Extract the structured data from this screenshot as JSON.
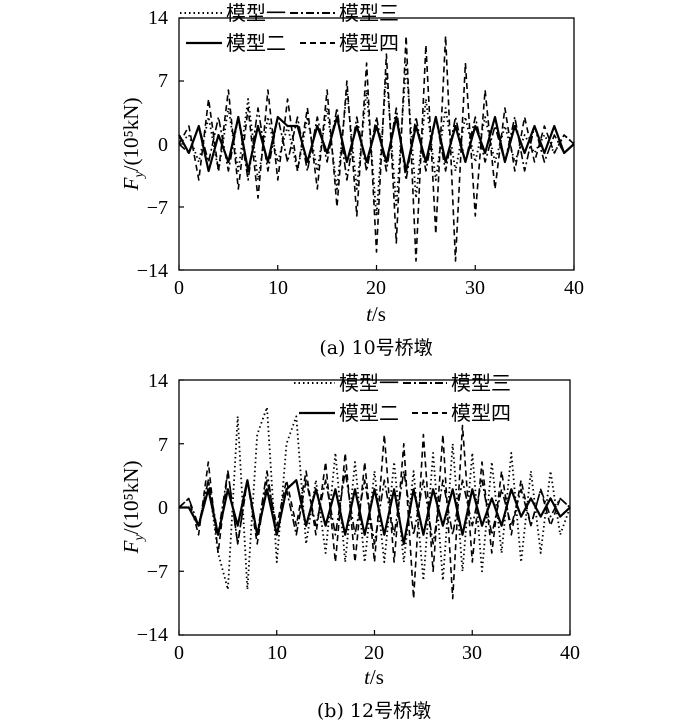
{
  "charts": [
    {
      "id": "a",
      "caption": "(a) 10号桥墩",
      "xlabel_var": "t",
      "xlabel_unit": "/s",
      "ylabel_var": "F",
      "ylabel_sub": "y",
      "ylabel_unit": "/(10⁵kN)",
      "xticks": [
        "0",
        "10",
        "20",
        "30",
        "40"
      ],
      "yticks": [
        "14",
        "7",
        "0",
        "−7",
        "−14"
      ],
      "legend": [
        "模型一",
        "模型三",
        "模型二",
        "模型四"
      ]
    },
    {
      "id": "b",
      "caption": "(b) 12号桥墩",
      "xlabel_var": "t",
      "xlabel_unit": "/s",
      "ylabel_var": "F",
      "ylabel_sub": "y",
      "ylabel_unit": "/(10⁵kN)",
      "xticks": [
        "0",
        "10",
        "20",
        "30",
        "40"
      ],
      "yticks": [
        "14",
        "7",
        "0",
        "−7",
        "−14"
      ],
      "legend": [
        "模型一",
        "模型三",
        "模型二",
        "模型四"
      ]
    }
  ],
  "chart_data": [
    {
      "type": "line",
      "caption": "(a) 10号桥墩",
      "xlabel": "t/s",
      "ylabel": "Fy/(10^5kN)",
      "xlim": [
        0,
        40
      ],
      "ylim": [
        -14,
        14
      ],
      "grid": false,
      "legend_position": "top",
      "series": [
        {
          "name": "模型一",
          "style": "dotted",
          "x": [
            0,
            1,
            2,
            3,
            4,
            5,
            6,
            7,
            8,
            9,
            10,
            11,
            12,
            13,
            14,
            15,
            16,
            17,
            18,
            19,
            20,
            21,
            22,
            23,
            24,
            25,
            26,
            27,
            28,
            29,
            30,
            31,
            32,
            33,
            34,
            35,
            36,
            37,
            38,
            39,
            40
          ],
          "y": [
            0,
            1,
            -2,
            3,
            -3,
            4,
            -3,
            5,
            -4,
            3,
            -2,
            2,
            -3,
            3,
            -3,
            4,
            -5,
            6,
            -5,
            6,
            -8,
            8,
            -7,
            9,
            -6,
            5,
            -4,
            4,
            -3,
            3,
            -2,
            3,
            -2,
            2,
            -2,
            1,
            -1,
            1,
            -1,
            1,
            0
          ]
        },
        {
          "name": "模型三",
          "style": "dashdot",
          "x": [
            0,
            1,
            2,
            3,
            4,
            5,
            6,
            7,
            8,
            9,
            10,
            11,
            12,
            13,
            14,
            15,
            16,
            17,
            18,
            19,
            20,
            21,
            22,
            23,
            24,
            25,
            26,
            27,
            28,
            29,
            30,
            31,
            32,
            33,
            34,
            35,
            36,
            37,
            38,
            39,
            40
          ],
          "y": [
            0,
            -1,
            2,
            -2,
            3,
            -3,
            3,
            -4,
            4,
            -3,
            3,
            -2,
            3,
            -3,
            3,
            -2,
            4,
            -4,
            3,
            -3,
            3,
            -3,
            4,
            -4,
            3,
            -3,
            3,
            -3,
            3,
            -2,
            3,
            -2,
            2,
            -2,
            3,
            -3,
            2,
            -2,
            1,
            -1,
            0
          ]
        },
        {
          "name": "模型二",
          "style": "solid",
          "x": [
            0,
            1,
            2,
            3,
            4,
            5,
            6,
            7,
            8,
            9,
            10,
            11,
            12,
            13,
            14,
            15,
            16,
            17,
            18,
            19,
            20,
            21,
            22,
            23,
            24,
            25,
            26,
            27,
            28,
            29,
            30,
            31,
            32,
            33,
            34,
            35,
            36,
            37,
            38,
            39,
            40
          ],
          "y": [
            1,
            -1,
            2,
            -3,
            1,
            -2,
            3,
            -3,
            2,
            -2,
            3,
            2,
            2,
            -2,
            2,
            -1,
            3,
            -2,
            2,
            -2,
            2,
            -2,
            3,
            -3,
            2,
            -2,
            3,
            -2,
            2,
            -2,
            2,
            -1,
            3,
            -2,
            2,
            -1,
            2,
            -1,
            2,
            -1,
            0
          ]
        },
        {
          "name": "模型四",
          "style": "dashed",
          "x": [
            0,
            1,
            2,
            3,
            4,
            5,
            6,
            7,
            8,
            9,
            10,
            11,
            12,
            13,
            14,
            15,
            16,
            17,
            18,
            19,
            20,
            21,
            22,
            23,
            24,
            25,
            26,
            27,
            28,
            29,
            30,
            31,
            32,
            33,
            34,
            35,
            36,
            37,
            38,
            39,
            40
          ],
          "y": [
            0,
            2,
            -4,
            5,
            -3,
            6,
            -5,
            4,
            -6,
            6,
            -4,
            5,
            -3,
            4,
            -5,
            6,
            -7,
            7,
            -8,
            9,
            -12,
            10,
            -11,
            12,
            -13,
            11,
            -10,
            12,
            -13,
            9,
            -8,
            6,
            -5,
            4,
            -3,
            3,
            -2,
            2,
            -1,
            1,
            0
          ]
        }
      ]
    },
    {
      "type": "line",
      "caption": "(b) 12号桥墩",
      "xlabel": "t/s",
      "ylabel": "Fy/(10^5kN)",
      "xlim": [
        0,
        40
      ],
      "ylim": [
        -14,
        14
      ],
      "grid": false,
      "legend_position": "top",
      "series": [
        {
          "name": "模型一",
          "style": "dotted",
          "x": [
            0,
            1,
            2,
            3,
            4,
            5,
            6,
            7,
            8,
            9,
            10,
            11,
            12,
            13,
            14,
            15,
            16,
            17,
            18,
            19,
            20,
            21,
            22,
            23,
            24,
            25,
            26,
            27,
            28,
            29,
            30,
            31,
            32,
            33,
            34,
            35,
            36,
            37,
            38,
            39,
            40
          ],
          "y": [
            0,
            0,
            -2,
            3,
            -5,
            -9,
            10,
            -9,
            8,
            11,
            -6,
            7,
            10,
            -4,
            3,
            -5,
            6,
            -6,
            5,
            -6,
            4,
            -6,
            5,
            -6,
            4,
            -8,
            6,
            -8,
            7,
            -7,
            6,
            -7,
            5,
            -5,
            6,
            -6,
            4,
            -5,
            4,
            -3,
            0
          ]
        },
        {
          "name": "模型三",
          "style": "dashdot",
          "x": [
            0,
            1,
            2,
            3,
            4,
            5,
            6,
            7,
            8,
            9,
            10,
            11,
            12,
            13,
            14,
            15,
            16,
            17,
            18,
            19,
            20,
            21,
            22,
            23,
            24,
            25,
            26,
            27,
            28,
            29,
            30,
            31,
            32,
            33,
            34,
            35,
            36,
            37,
            38,
            39,
            40
          ],
          "y": [
            0,
            1,
            -2,
            3,
            -3,
            4,
            -4,
            3,
            -3,
            4,
            -3,
            2,
            -3,
            3,
            -2,
            3,
            -3,
            4,
            -3,
            3,
            -4,
            3,
            -3,
            4,
            -3,
            3,
            -4,
            3,
            -3,
            3,
            -2,
            3,
            -3,
            2,
            -2,
            2,
            -2,
            2,
            -1,
            1,
            0
          ]
        },
        {
          "name": "模型二",
          "style": "solid",
          "x": [
            0,
            1,
            2,
            3,
            4,
            5,
            6,
            7,
            8,
            9,
            10,
            11,
            12,
            13,
            14,
            15,
            16,
            17,
            18,
            19,
            20,
            21,
            22,
            23,
            24,
            25,
            26,
            27,
            28,
            29,
            30,
            31,
            32,
            33,
            34,
            35,
            36,
            37,
            38,
            39,
            40
          ],
          "y": [
            0,
            0,
            -2,
            2,
            -3,
            2,
            -2,
            3,
            -3,
            2,
            -3,
            2,
            3,
            -2,
            2,
            -2,
            2,
            -3,
            2,
            -3,
            2,
            -3,
            2,
            -4,
            2,
            -3,
            2,
            -2,
            2,
            -3,
            2,
            -2,
            1,
            -2,
            2,
            -1,
            1,
            -1,
            1,
            -1,
            0
          ]
        },
        {
          "name": "模型四",
          "style": "dashed",
          "x": [
            0,
            1,
            2,
            3,
            4,
            5,
            6,
            7,
            8,
            9,
            10,
            11,
            12,
            13,
            14,
            15,
            16,
            17,
            18,
            19,
            20,
            21,
            22,
            23,
            24,
            25,
            26,
            27,
            28,
            29,
            30,
            31,
            32,
            33,
            34,
            35,
            36,
            37,
            38,
            39,
            40
          ],
          "y": [
            0,
            1,
            -3,
            5,
            -5,
            4,
            -4,
            3,
            -4,
            3,
            -2,
            3,
            -2,
            4,
            -3,
            5,
            -6,
            6,
            -6,
            5,
            -6,
            8,
            -6,
            7,
            -10,
            8,
            -7,
            8,
            -10,
            9,
            -6,
            5,
            -5,
            4,
            -3,
            3,
            -2,
            2,
            -2,
            1,
            0
          ]
        }
      ]
    }
  ]
}
